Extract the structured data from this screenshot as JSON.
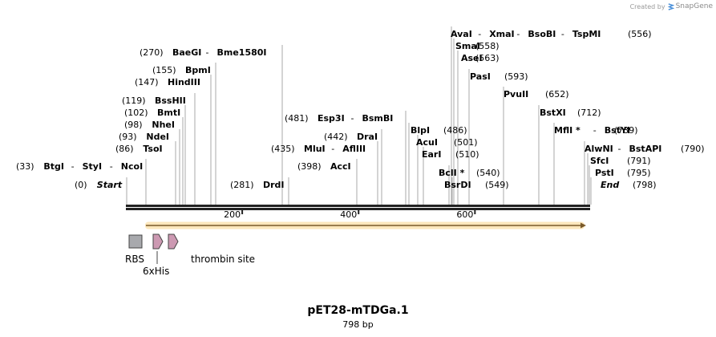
{
  "credit": {
    "prefix": "Created by",
    "brand": "SnapGene"
  },
  "sequence": {
    "name": "pET28-mTDGa.1",
    "size_label": "798 bp",
    "length": 798
  },
  "ruler": {
    "ticks": [
      "200",
      "400",
      "600"
    ]
  },
  "enzymes": [
    {
      "id": "start",
      "names": [
        "Start"
      ],
      "pos": 0,
      "label_pos": "(0)",
      "italic": true
    },
    {
      "id": "btgi",
      "names": [
        "BtgI",
        "StyI",
        "NcoI"
      ],
      "pos": 33,
      "label_pos": "(33)"
    },
    {
      "id": "tsoi",
      "names": [
        "TsoI"
      ],
      "pos": 86,
      "label_pos": "(86)"
    },
    {
      "id": "ndei",
      "names": [
        "NdeI"
      ],
      "pos": 93,
      "label_pos": "(93)"
    },
    {
      "id": "nhei",
      "names": [
        "NheI"
      ],
      "pos": 98,
      "label_pos": "(98)"
    },
    {
      "id": "bmti",
      "names": [
        "BmtI"
      ],
      "pos": 102,
      "label_pos": "(102)"
    },
    {
      "id": "bsshii",
      "names": [
        "BssHII"
      ],
      "pos": 119,
      "label_pos": "(119)"
    },
    {
      "id": "hindiii",
      "names": [
        "HindIII"
      ],
      "pos": 147,
      "label_pos": "(147)"
    },
    {
      "id": "bpmi",
      "names": [
        "BpmI"
      ],
      "pos": 155,
      "label_pos": "(155)"
    },
    {
      "id": "baegi",
      "names": [
        "BaeGI",
        "Bme1580I"
      ],
      "pos": 270,
      "label_pos": "(270)"
    },
    {
      "id": "drdi",
      "names": [
        "DrdI"
      ],
      "pos": 281,
      "label_pos": "(281)"
    },
    {
      "id": "acci",
      "names": [
        "AccI"
      ],
      "pos": 398,
      "label_pos": "(398)"
    },
    {
      "id": "mlui",
      "names": [
        "MluI",
        "AflIII"
      ],
      "pos": 435,
      "label_pos": "(435)"
    },
    {
      "id": "drai",
      "names": [
        "DraI"
      ],
      "pos": 442,
      "label_pos": "(442)"
    },
    {
      "id": "esp3i",
      "names": [
        "Esp3I",
        "BsmBI"
      ],
      "pos": 481,
      "label_pos": "(481)"
    },
    {
      "id": "blpi",
      "names": [
        "BlpI"
      ],
      "pos": 486,
      "label_pos": "(486)"
    },
    {
      "id": "acui",
      "names": [
        "AcuI"
      ],
      "pos": 501,
      "label_pos": "(501)"
    },
    {
      "id": "eari",
      "names": [
        "EarI"
      ],
      "pos": 510,
      "label_pos": "(510)"
    },
    {
      "id": "bcli",
      "names": [
        "BclI *"
      ],
      "pos": 540,
      "label_pos": "(540)"
    },
    {
      "id": "bsrdi",
      "names": [
        "BsrDI"
      ],
      "pos": 549,
      "label_pos": "(549)"
    },
    {
      "id": "avai",
      "names": [
        "AvaI",
        "XmaI",
        "BsoBI",
        "TspMI"
      ],
      "pos": 556,
      "label_pos": "(556)"
    },
    {
      "id": "smai",
      "names": [
        "SmaI"
      ],
      "pos": 558,
      "label_pos": "(558)"
    },
    {
      "id": "asei",
      "names": [
        "AseI"
      ],
      "pos": 563,
      "label_pos": "(563)"
    },
    {
      "id": "pasi",
      "names": [
        "PasI"
      ],
      "pos": 593,
      "label_pos": "(593)"
    },
    {
      "id": "pvuii",
      "names": [
        "PvuII"
      ],
      "pos": 652,
      "label_pos": "(652)"
    },
    {
      "id": "bstxi",
      "names": [
        "BstXI"
      ],
      "pos": 712,
      "label_pos": "(712)"
    },
    {
      "id": "mfli",
      "names": [
        "MflI *",
        "BstYI"
      ],
      "pos": 739,
      "label_pos": "(739)"
    },
    {
      "id": "alwni",
      "names": [
        "AlwNI",
        "BstAPI"
      ],
      "pos": 790,
      "label_pos": "(790)"
    },
    {
      "id": "sfci",
      "names": [
        "SfcI"
      ],
      "pos": 791,
      "label_pos": "(791)"
    },
    {
      "id": "psti",
      "names": [
        "PstI"
      ],
      "pos": 795,
      "label_pos": "(795)"
    },
    {
      "id": "end",
      "names": [
        "End"
      ],
      "pos": 798,
      "label_pos": "(798)",
      "italic": true
    }
  ],
  "features": [
    {
      "id": "rbs",
      "label": "RBS",
      "type": "RBS",
      "color": "#a8a9ad"
    },
    {
      "id": "6xhis",
      "label": "6xHis",
      "type": "CDS",
      "color": "#cc99b2"
    },
    {
      "id": "thrombin",
      "label": "thrombin site",
      "type": "CDS",
      "color": "#cc99b2"
    }
  ],
  "orf": {
    "color": "#f7b32b",
    "direction": "forward",
    "start": 33,
    "end": 798
  },
  "colors": {
    "backbone": "#222222",
    "leader": "#aaaaaa"
  }
}
